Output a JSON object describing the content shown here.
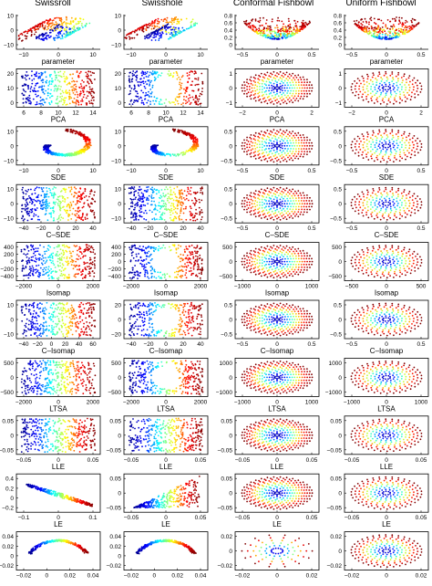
{
  "figure": {
    "column_titles": [
      "Swissroll",
      "Swisshole",
      "Conformal Fishbowl",
      "Uniform Fishbowl"
    ]
  },
  "chart_data": {
    "type": "scatter",
    "colormap": "jet",
    "colormap_stops": [
      "#00008f",
      "#0000ff",
      "#00ffff",
      "#ffff00",
      "#ff0000",
      "#800000"
    ],
    "row_titles": [
      "parameter",
      "PCA",
      "SDE",
      "C–SDE",
      "Isomap",
      "C–Isomap",
      "LTSA",
      "LLE",
      "LE"
    ],
    "panels": [
      {
        "row": 0,
        "col": 0,
        "method": "input-3d",
        "shape": "swissroll",
        "xticks": [
          "−10",
          "0",
          "10"
        ],
        "yticks": [
          "10",
          "0",
          "−10"
        ],
        "zticks": [
          "0",
          "10",
          "20"
        ]
      },
      {
        "row": 0,
        "col": 1,
        "method": "input-3d",
        "shape": "swisshole",
        "xticks": [
          "−10",
          "0",
          "10"
        ],
        "yticks": [
          "10",
          "0",
          "−10"
        ],
        "zticks": [
          "0",
          "10",
          "20"
        ]
      },
      {
        "row": 0,
        "col": 2,
        "method": "input-3d",
        "shape": "bowl",
        "xticks": [
          "−0.5",
          "0",
          "0.5"
        ],
        "yticks": [
          "0.8",
          "0.6",
          "0.4",
          "0.2",
          "0"
        ],
        "zticks": [
          "0",
          "0.5"
        ]
      },
      {
        "row": 0,
        "col": 3,
        "method": "input-3d",
        "shape": "bowl",
        "xticks": [
          "−0.5",
          "0",
          "0.5"
        ],
        "yticks": [
          "0.8",
          "0.6",
          "0.4",
          "0.2",
          "0"
        ],
        "zticks": [
          "0",
          "0.5"
        ]
      },
      {
        "row": 1,
        "col": 0,
        "method": "parameter",
        "shape": "rect",
        "xlim": [
          4.5,
          14.5
        ],
        "ylim": [
          0,
          21
        ],
        "xticks": [
          "6",
          "8",
          "10",
          "12",
          "14"
        ],
        "yticks": [
          "20",
          "10",
          "0"
        ]
      },
      {
        "row": 1,
        "col": 1,
        "method": "parameter",
        "shape": "recthole",
        "xlim": [
          4.5,
          14.5
        ],
        "ylim": [
          0,
          21
        ],
        "xticks": [
          "6",
          "8",
          "10",
          "12",
          "14"
        ],
        "yticks": [
          "20",
          "10",
          "0"
        ]
      },
      {
        "row": 1,
        "col": 2,
        "method": "parameter",
        "shape": "disk-grid",
        "xlim": [
          -2.8,
          2.8
        ],
        "ylim": [
          -1.1,
          1.1
        ],
        "xticks": [
          "−2",
          "0",
          "2"
        ],
        "yticks": [
          "1",
          "0",
          "−1"
        ]
      },
      {
        "row": 1,
        "col": 3,
        "method": "parameter",
        "shape": "disk-rings",
        "xlim": [
          -2.8,
          2.8
        ],
        "ylim": [
          -1.1,
          1.1
        ],
        "xticks": [
          "−2",
          "0",
          "2"
        ],
        "yticks": [
          "1",
          "0",
          "−1"
        ]
      },
      {
        "row": 2,
        "col": 0,
        "method": "PCA",
        "shape": "spiral",
        "xlim": [
          -15,
          15
        ],
        "ylim": [
          -13,
          13
        ],
        "xticks": [
          "−10",
          "0",
          "10"
        ],
        "yticks": [
          "10",
          "0",
          "−10"
        ]
      },
      {
        "row": 2,
        "col": 1,
        "method": "PCA",
        "shape": "spiralhole",
        "xlim": [
          -15,
          15
        ],
        "ylim": [
          -13,
          13
        ],
        "xticks": [
          "−10",
          "0",
          "10"
        ],
        "yticks": [
          "10",
          "0",
          "−10"
        ]
      },
      {
        "row": 2,
        "col": 2,
        "method": "PCA",
        "shape": "disk-grid",
        "xlim": [
          -0.85,
          0.85
        ],
        "ylim": [
          -0.65,
          0.65
        ],
        "xticks": [
          "−0.5",
          "0",
          "0.5"
        ],
        "yticks": [
          "0.5",
          "0",
          "−0.5"
        ]
      },
      {
        "row": 2,
        "col": 3,
        "method": "PCA",
        "shape": "disk-rings",
        "xlim": [
          -0.85,
          0.85
        ],
        "ylim": [
          -0.65,
          0.65
        ],
        "xticks": [
          "−0.5",
          "0",
          "0.5"
        ],
        "yticks": [
          "0.5",
          "0",
          "−0.5"
        ]
      },
      {
        "row": 3,
        "col": 0,
        "method": "SDE",
        "shape": "rect",
        "xlim": [
          -42,
          42
        ],
        "ylim": [
          -13,
          13
        ],
        "xticks": [
          "−40",
          "−20",
          "0",
          "20",
          "40"
        ],
        "yticks": [
          "10",
          "0",
          "−10"
        ]
      },
      {
        "row": 3,
        "col": 1,
        "method": "SDE",
        "shape": "rect",
        "xlim": [
          -42,
          42
        ],
        "ylim": [
          -13,
          13
        ],
        "xticks": [
          "−40",
          "−20",
          "0",
          "20",
          "40"
        ],
        "yticks": [
          "10",
          "0",
          "−10"
        ]
      },
      {
        "row": 3,
        "col": 2,
        "method": "SDE",
        "shape": "disk-grid",
        "xlim": [
          -0.85,
          0.85
        ],
        "ylim": [
          -0.65,
          0.65
        ],
        "xticks": [
          "−0.5",
          "0",
          "0.5"
        ],
        "yticks": [
          "0.5",
          "0",
          "−0.5"
        ]
      },
      {
        "row": 3,
        "col": 3,
        "method": "SDE",
        "shape": "disk-rings",
        "xlim": [
          -0.85,
          0.85
        ],
        "ylim": [
          -0.65,
          0.65
        ],
        "xticks": [
          "−0.5",
          "0",
          "0.5"
        ],
        "yticks": [
          "0.5",
          "0",
          "−0.5"
        ]
      },
      {
        "row": 4,
        "col": 0,
        "method": "C–SDE",
        "shape": "rect",
        "xlim": [
          -2700,
          2700
        ],
        "ylim": [
          -420,
          420
        ],
        "xticks": [
          "−2000",
          "0",
          "2000"
        ],
        "yticks": [
          "400",
          "200",
          "0",
          "−200",
          "−400"
        ]
      },
      {
        "row": 4,
        "col": 1,
        "method": "C–SDE",
        "shape": "recthole",
        "xlim": [
          -2700,
          2700
        ],
        "ylim": [
          -420,
          420
        ],
        "xticks": [
          "−2000",
          "0",
          "2000"
        ],
        "yticks": [
          "400",
          "200",
          "0",
          "−200",
          "−400"
        ]
      },
      {
        "row": 4,
        "col": 2,
        "method": "C–SDE",
        "shape": "disk-grid",
        "xlim": [
          -1400,
          1400
        ],
        "ylim": [
          -650,
          650
        ],
        "xticks": [
          "−1000",
          "0",
          "1000"
        ],
        "yticks": [
          "500",
          "0",
          "−500"
        ]
      },
      {
        "row": 4,
        "col": 3,
        "method": "C–SDE",
        "shape": "disk-rings",
        "xlim": [
          -800,
          800
        ],
        "ylim": [
          -650,
          650
        ],
        "xticks": [
          "−500",
          "0",
          "500"
        ],
        "yticks": [
          "500",
          "0",
          "−500"
        ]
      },
      {
        "row": 5,
        "col": 0,
        "method": "Isomap",
        "shape": "rect",
        "xlim": [
          -50,
          62
        ],
        "ylim": [
          -13,
          13
        ],
        "xticks": [
          "−40",
          "−20",
          "0",
          "20",
          "40",
          "60"
        ],
        "yticks": [
          "10",
          "0",
          "−10"
        ]
      },
      {
        "row": 5,
        "col": 1,
        "method": "Isomap",
        "shape": "recthole",
        "xlim": [
          -45,
          45
        ],
        "ylim": [
          -22,
          22
        ],
        "xticks": [
          "−40",
          "−20",
          "0",
          "20",
          "40"
        ],
        "yticks": [
          "20",
          "0",
          "−20"
        ]
      },
      {
        "row": 5,
        "col": 2,
        "method": "Isomap",
        "shape": "disk-grid",
        "xlim": [
          -0.85,
          0.85
        ],
        "ylim": [
          -0.65,
          0.65
        ],
        "xticks": [
          "−0.5",
          "0",
          "0.5"
        ],
        "yticks": [
          "0.5",
          "0",
          "−0.5"
        ]
      },
      {
        "row": 5,
        "col": 3,
        "method": "Isomap",
        "shape": "disk-rings",
        "xlim": [
          -0.85,
          0.85
        ],
        "ylim": [
          -0.65,
          0.65
        ],
        "xticks": [
          "−0.5",
          "0",
          "0.5"
        ],
        "yticks": [
          "0.5",
          "0",
          "−0.5"
        ]
      },
      {
        "row": 6,
        "col": 0,
        "method": "C–Isomap",
        "shape": "rect",
        "xlim": [
          -2700,
          2700
        ],
        "ylim": [
          -650,
          650
        ],
        "xticks": [
          "−2000",
          "0",
          "2000"
        ],
        "yticks": [
          "500",
          "0",
          "−500"
        ]
      },
      {
        "row": 6,
        "col": 1,
        "method": "C–Isomap",
        "shape": "recthole",
        "xlim": [
          -2700,
          2700
        ],
        "ylim": [
          -650,
          650
        ],
        "xticks": [
          "−2000",
          "0",
          "2000"
        ],
        "yticks": [
          "500",
          "0",
          "−500"
        ]
      },
      {
        "row": 6,
        "col": 2,
        "method": "C–Isomap",
        "shape": "disk-grid",
        "xlim": [
          -1400,
          1400
        ],
        "ylim": [
          -1300,
          1300
        ],
        "xticks": [
          "−1000",
          "0",
          "1000"
        ],
        "yticks": [
          "1000",
          "0",
          "−1000"
        ]
      },
      {
        "row": 6,
        "col": 3,
        "method": "C–Isomap",
        "shape": "disk-rings",
        "xlim": [
          -1400,
          1400
        ],
        "ylim": [
          -1300,
          1300
        ],
        "xticks": [
          "−1000",
          "0",
          "1000"
        ],
        "yticks": [
          "1000",
          "0",
          "−1000"
        ]
      },
      {
        "row": 7,
        "col": 0,
        "method": "LTSA",
        "shape": "rect",
        "xlim": [
          -0.06,
          0.06
        ],
        "ylim": [
          -0.06,
          0.06
        ],
        "xticks": [
          "−0.05",
          "0",
          "0.05"
        ],
        "yticks": [
          "0.05",
          "0",
          "−0.05"
        ]
      },
      {
        "row": 7,
        "col": 1,
        "method": "LTSA",
        "shape": "rect",
        "xlim": [
          -0.06,
          0.06
        ],
        "ylim": [
          -0.06,
          0.06
        ],
        "xticks": [
          "−0.05",
          "0",
          "0.05"
        ],
        "yticks": [
          "0.05",
          "0",
          "−0.05"
        ]
      },
      {
        "row": 7,
        "col": 2,
        "method": "LTSA",
        "shape": "disk-grid",
        "xlim": [
          -0.05,
          0.05
        ],
        "ylim": [
          -0.05,
          0.05
        ],
        "xticks": [
          "−0.05",
          "0",
          "0.05"
        ],
        "yticks": [
          "0.05",
          "0",
          "−0.05"
        ]
      },
      {
        "row": 7,
        "col": 3,
        "method": "LTSA",
        "shape": "disk-rings",
        "xlim": [
          -0.05,
          0.05
        ],
        "ylim": [
          -0.05,
          0.05
        ],
        "xticks": [
          "−0.05",
          "0",
          "0.05"
        ],
        "yticks": [
          "0.05",
          "0",
          "−0.05"
        ]
      },
      {
        "row": 8,
        "col": 0,
        "method": "LLE",
        "shape": "fan",
        "xlim": [
          -0.12,
          0.12
        ],
        "ylim": [
          -0.22,
          0.42
        ],
        "xticks": [
          "−0.1",
          "0",
          "0.1"
        ],
        "yticks": [
          "0.4",
          "0.2",
          "0",
          "−0.2"
        ]
      },
      {
        "row": 8,
        "col": 1,
        "method": "LLE",
        "shape": "fan2",
        "xlim": [
          -0.07,
          0.07
        ],
        "ylim": [
          -0.06,
          0.06
        ],
        "xticks": [
          "−0.05",
          "0",
          "0.05"
        ],
        "yticks": [
          "0.05",
          "0",
          "−0.05"
        ]
      },
      {
        "row": 8,
        "col": 2,
        "method": "LLE",
        "shape": "disk-grid",
        "xlim": [
          -0.07,
          0.07
        ],
        "ylim": [
          -0.065,
          0.065
        ],
        "xticks": [
          "−0.05",
          "0",
          "0.05"
        ],
        "yticks": [
          "0.05",
          "0",
          "−0.05"
        ]
      },
      {
        "row": 8,
        "col": 3,
        "method": "LLE",
        "shape": "disk-rings",
        "xlim": [
          -0.07,
          0.07
        ],
        "ylim": [
          -0.065,
          0.065
        ],
        "xticks": [
          "−0.05",
          "0",
          "0.05"
        ],
        "yticks": [
          "0.05",
          "0",
          "−0.05"
        ]
      },
      {
        "row": 9,
        "col": 0,
        "method": "LE",
        "shape": "arc",
        "xlim": [
          -0.025,
          0.045
        ],
        "ylim": [
          -0.025,
          0.045
        ],
        "xticks": [
          "−0.02",
          "0",
          "0.02",
          "0.04"
        ],
        "yticks": [
          "0.04",
          "0.02",
          "0",
          "−0.02"
        ]
      },
      {
        "row": 9,
        "col": 1,
        "method": "LE",
        "shape": "arc",
        "xlim": [
          -0.025,
          0.045
        ],
        "ylim": [
          -0.025,
          0.045
        ],
        "xticks": [
          "−0.02",
          "0",
          "0.02",
          "0.04"
        ],
        "yticks": [
          "0.04",
          "0.02",
          "0",
          "−0.02"
        ]
      },
      {
        "row": 9,
        "col": 2,
        "method": "LE",
        "shape": "disk-sparse",
        "xlim": [
          -0.03,
          0.03
        ],
        "ylim": [
          -0.03,
          0.03
        ],
        "xticks": [
          "−0.02",
          "0",
          "0.02"
        ],
        "yticks": [
          "0.02",
          "0",
          "−0.02"
        ]
      },
      {
        "row": 9,
        "col": 3,
        "method": "LE",
        "shape": "disk-rings",
        "xlim": [
          -0.03,
          0.03
        ],
        "ylim": [
          -0.03,
          0.03
        ],
        "xticks": [
          "−0.02",
          "0",
          "0.02"
        ],
        "yticks": [
          "0.02",
          "0",
          "−0.02"
        ]
      }
    ]
  }
}
